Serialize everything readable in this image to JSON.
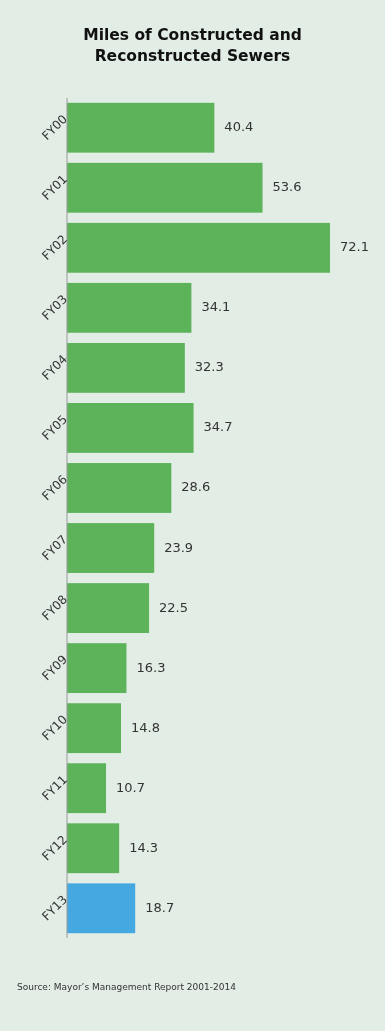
{
  "chart_data": {
    "type": "bar",
    "orientation": "horizontal",
    "title": "Miles of Constructed and Reconstructed Sewers",
    "categories": [
      "FY00",
      "FY01",
      "FY02",
      "FY03",
      "FY04",
      "FY05",
      "FY06",
      "FY07",
      "FY08",
      "FY09",
      "FY10",
      "FY11",
      "FY12",
      "FY13"
    ],
    "values": [
      40.4,
      53.6,
      72.1,
      34.1,
      32.3,
      34.7,
      28.6,
      23.9,
      22.5,
      16.3,
      14.8,
      10.7,
      14.3,
      18.7
    ],
    "colors": [
      "#5cb35a",
      "#5cb35a",
      "#5cb35a",
      "#5cb35a",
      "#5cb35a",
      "#5cb35a",
      "#5cb35a",
      "#5cb35a",
      "#5cb35a",
      "#5cb35a",
      "#5cb35a",
      "#5cb35a",
      "#5cb35a",
      "#46a8e0"
    ],
    "data_labels": true,
    "annotations": [
      "Source: Mayor’s Management Report 2001-2014"
    ]
  }
}
